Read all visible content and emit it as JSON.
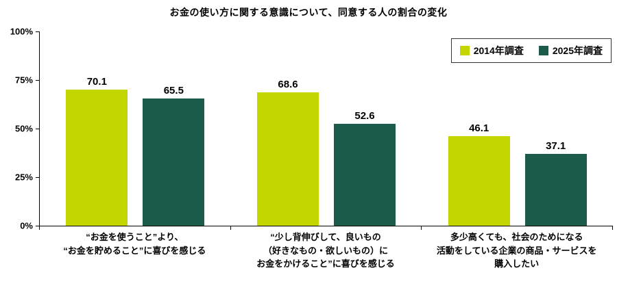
{
  "title": "お金の使い方に関する意識について、同意する人の割合の変化",
  "y_axis": {
    "ticks": [
      "100%",
      "75%",
      "50%",
      "25%",
      "0%"
    ]
  },
  "colors": {
    "series_2014": "#c3d600",
    "series_2025": "#1a5b4a",
    "axis": "#000000"
  },
  "chart_data": {
    "type": "bar",
    "title": "お金の使い方に関する意識について、同意する人の割合の変化",
    "categories": [
      "“お金を使うこと”より、“お金を貯めること”に喜びを感じる",
      "“少し背伸びして、良いもの（好きなもの・欲しいもの）にお金をかけること”に喜びを感じる",
      "多少高くても、社会のためになる活動をしている企業の商品・サービスを購入したい"
    ],
    "category_label_lines": [
      [
        "“お金を使うこと”より、",
        "“お金を貯めること”に喜びを感じる"
      ],
      [
        "“少し背伸びして、良いもの",
        "（好きなもの・欲しいもの）に",
        "お金をかけること”に喜びを感じる"
      ],
      [
        "多少高くても、社会のためになる",
        "活動をしている企業の商品・サービスを",
        "購入したい"
      ]
    ],
    "series": [
      {
        "name": "2014年調査",
        "color": "#c3d600",
        "values": [
          70.1,
          68.6,
          46.1
        ]
      },
      {
        "name": "2025年調査",
        "color": "#1a5b4a",
        "values": [
          65.5,
          52.6,
          37.1
        ]
      }
    ],
    "xlabel": "",
    "ylabel": "",
    "ylim": [
      0,
      100
    ],
    "ytick_values": [
      100,
      75,
      50,
      25,
      0
    ],
    "grid": false,
    "legend_position": "top-right"
  }
}
